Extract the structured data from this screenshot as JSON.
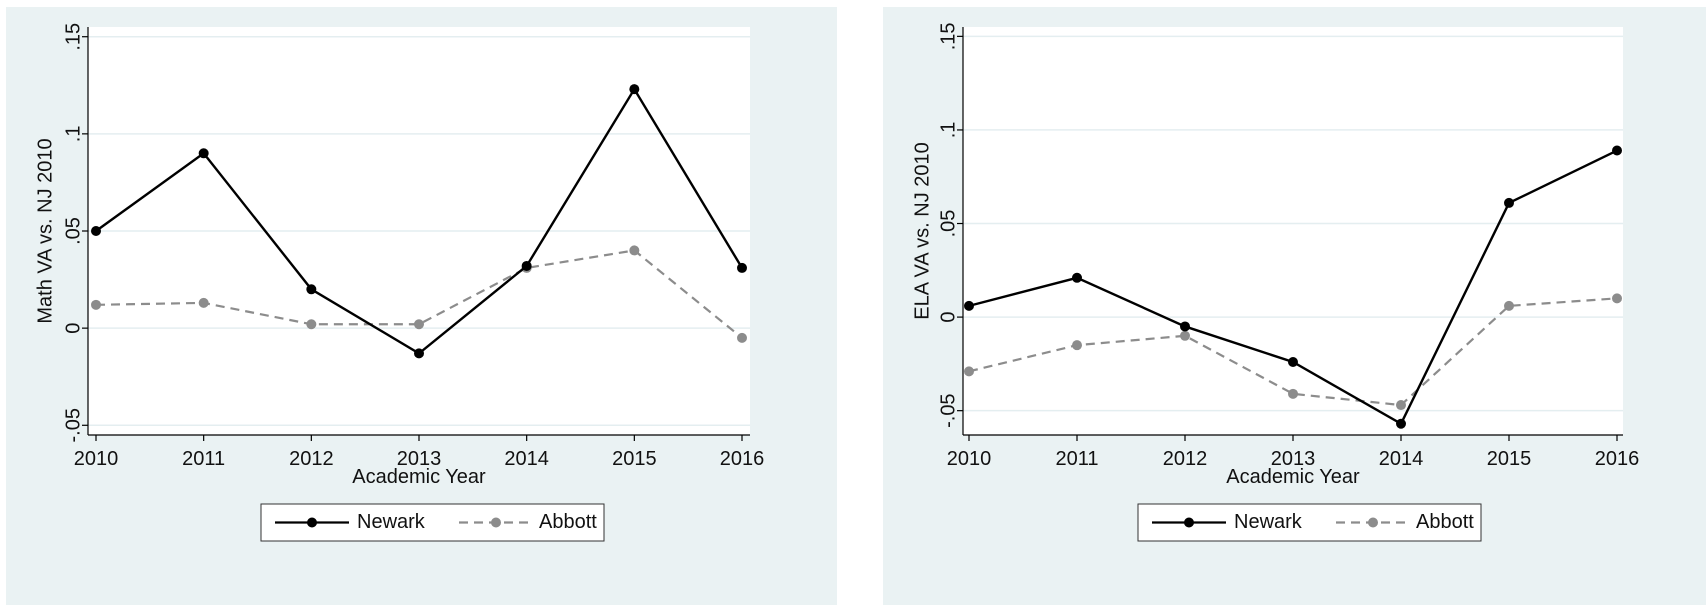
{
  "chart_data": [
    {
      "type": "line",
      "title": "",
      "xlabel": "Academic Year",
      "ylabel": "Math VA vs. NJ 2010",
      "categories": [
        "2010",
        "2011",
        "2012",
        "2013",
        "2014",
        "2015",
        "2016"
      ],
      "ylim": [
        -0.055,
        0.155
      ],
      "yticks": [
        -0.05,
        0,
        0.05,
        0.1,
        0.15
      ],
      "ytick_labels": [
        "-.05",
        "0",
        ".05",
        ".1",
        ".15"
      ],
      "grid": true,
      "legend": "bottom",
      "series": [
        {
          "name": "Newark",
          "color": "#000000",
          "style": "solid",
          "values": [
            0.05,
            0.09,
            0.02,
            -0.013,
            0.032,
            0.123,
            0.031
          ]
        },
        {
          "name": "Abbott",
          "color": "#8c8c8c",
          "style": "dashed",
          "values": [
            0.012,
            0.013,
            0.002,
            0.002,
            0.031,
            0.04,
            -0.005
          ]
        }
      ]
    },
    {
      "type": "line",
      "title": "",
      "xlabel": "Academic Year",
      "ylabel": "ELA VA vs. NJ 2010",
      "categories": [
        "2010",
        "2011",
        "2012",
        "2013",
        "2014",
        "2015",
        "2016"
      ],
      "ylim": [
        -0.063,
        0.155
      ],
      "yticks": [
        -0.05,
        0,
        0.05,
        0.1,
        0.15
      ],
      "ytick_labels": [
        "-.05",
        "0",
        ".05",
        ".1",
        ".15"
      ],
      "grid": true,
      "legend": "bottom",
      "series": [
        {
          "name": "Newark",
          "color": "#000000",
          "style": "solid",
          "values": [
            0.006,
            0.021,
            -0.005,
            -0.024,
            -0.057,
            0.061,
            0.089
          ]
        },
        {
          "name": "Abbott",
          "color": "#8c8c8c",
          "style": "dashed",
          "values": [
            -0.029,
            -0.015,
            -0.01,
            -0.041,
            -0.047,
            0.006,
            0.01
          ]
        }
      ]
    }
  ]
}
